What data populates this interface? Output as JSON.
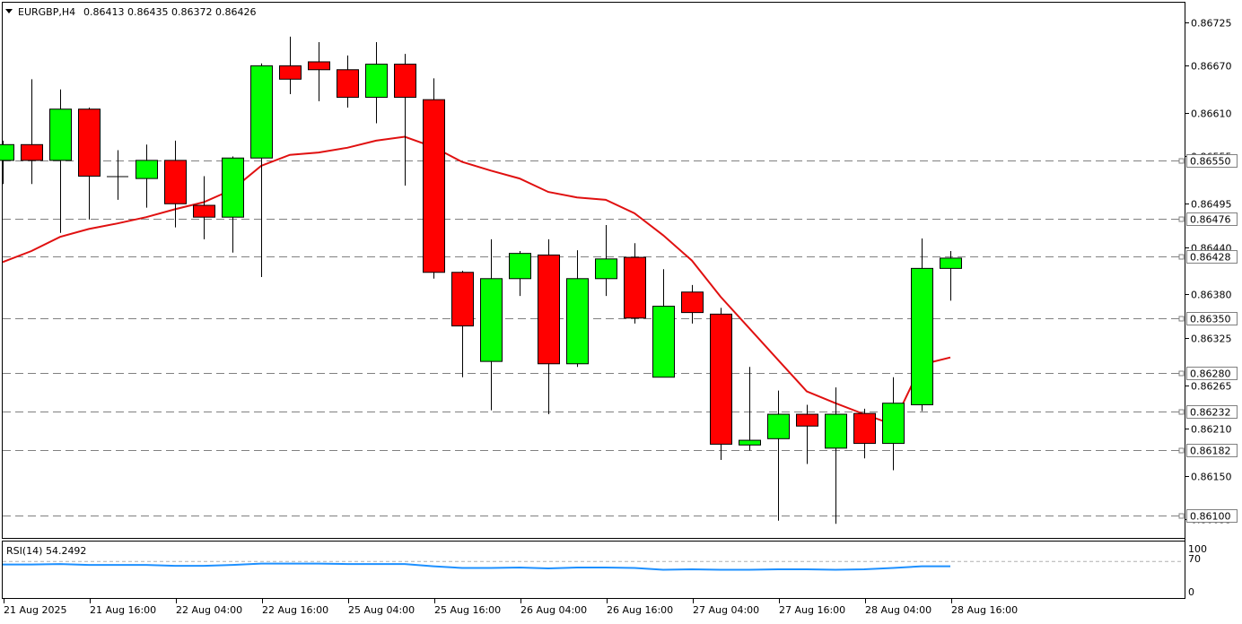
{
  "header": {
    "symbol": "EURGBP,H4",
    "ohlc": "0.86413 0.86435 0.86372 0.86426",
    "dropdown_icon": "triangle-down-icon"
  },
  "rsi_panel": {
    "label": "RSI(14) 54.2492",
    "ticks": [
      "100",
      "70",
      "0"
    ],
    "color": "#1e90ff"
  },
  "colors": {
    "bull": "#00ff00",
    "bear": "#ff0000",
    "ma": "#e01010",
    "grid": "#808080"
  },
  "chart_data": {
    "type": "candlestick",
    "title": "EURGBP,H4",
    "ylim": [
      0.86083,
      0.86745
    ],
    "y_ticks": [
      "0.86725",
      "0.86670",
      "0.86610",
      "0.86555",
      "0.86495",
      "0.86440",
      "0.86380",
      "0.86325",
      "0.86265",
      "0.86210",
      "0.86150",
      "0.86095"
    ],
    "price_levels": [
      "0.86550",
      "0.86476",
      "0.86428",
      "0.86350",
      "0.86280",
      "0.86232",
      "0.86182",
      "0.86100"
    ],
    "x_labels": [
      "21 Aug 2025",
      "21 Aug 16:00",
      "22 Aug 04:00",
      "22 Aug 16:00",
      "25 Aug 04:00",
      "25 Aug 16:00",
      "26 Aug 04:00",
      "26 Aug 16:00",
      "27 Aug 04:00",
      "27 Aug 16:00",
      "28 Aug 04:00",
      "28 Aug 16:00"
    ],
    "candles": [
      {
        "o": 0.8655,
        "h": 0.86575,
        "l": 0.8652,
        "c": 0.8657
      },
      {
        "o": 0.8657,
        "h": 0.86653,
        "l": 0.8652,
        "c": 0.8655
      },
      {
        "o": 0.8655,
        "h": 0.8664,
        "l": 0.86458,
        "c": 0.86615
      },
      {
        "o": 0.86615,
        "h": 0.86617,
        "l": 0.86475,
        "c": 0.8653
      },
      {
        "o": 0.8653,
        "h": 0.86563,
        "l": 0.865,
        "c": 0.8653
      },
      {
        "o": 0.86527,
        "h": 0.8657,
        "l": 0.8649,
        "c": 0.8655
      },
      {
        "o": 0.8655,
        "h": 0.86575,
        "l": 0.86465,
        "c": 0.86495
      },
      {
        "o": 0.86493,
        "h": 0.8653,
        "l": 0.8645,
        "c": 0.86478
      },
      {
        "o": 0.86478,
        "h": 0.86555,
        "l": 0.86433,
        "c": 0.86553
      },
      {
        "o": 0.86553,
        "h": 0.86673,
        "l": 0.86402,
        "c": 0.8667
      },
      {
        "o": 0.8667,
        "h": 0.86707,
        "l": 0.86634,
        "c": 0.86653
      },
      {
        "o": 0.86675,
        "h": 0.867,
        "l": 0.86625,
        "c": 0.86665
      },
      {
        "o": 0.86665,
        "h": 0.86683,
        "l": 0.86617,
        "c": 0.8663
      },
      {
        "o": 0.8663,
        "h": 0.867,
        "l": 0.86597,
        "c": 0.86672
      },
      {
        "o": 0.86672,
        "h": 0.86685,
        "l": 0.86518,
        "c": 0.8663
      },
      {
        "o": 0.86627,
        "h": 0.86654,
        "l": 0.864,
        "c": 0.86408
      },
      {
        "o": 0.86408,
        "h": 0.8641,
        "l": 0.86275,
        "c": 0.8634
      },
      {
        "o": 0.86295,
        "h": 0.8645,
        "l": 0.86233,
        "c": 0.864
      },
      {
        "o": 0.864,
        "h": 0.86435,
        "l": 0.86378,
        "c": 0.86432
      },
      {
        "o": 0.8643,
        "h": 0.8645,
        "l": 0.86228,
        "c": 0.86292
      },
      {
        "o": 0.86292,
        "h": 0.86436,
        "l": 0.86288,
        "c": 0.864
      },
      {
        "o": 0.864,
        "h": 0.86468,
        "l": 0.86378,
        "c": 0.86425
      },
      {
        "o": 0.86427,
        "h": 0.86445,
        "l": 0.86343,
        "c": 0.8635
      },
      {
        "o": 0.86275,
        "h": 0.86412,
        "l": 0.86275,
        "c": 0.86365
      },
      {
        "o": 0.86383,
        "h": 0.86392,
        "l": 0.86343,
        "c": 0.86357
      },
      {
        "o": 0.86355,
        "h": 0.86363,
        "l": 0.8617,
        "c": 0.8619
      },
      {
        "o": 0.86189,
        "h": 0.86288,
        "l": 0.86182,
        "c": 0.86195
      },
      {
        "o": 0.86197,
        "h": 0.86258,
        "l": 0.86093,
        "c": 0.86228
      },
      {
        "o": 0.86228,
        "h": 0.8624,
        "l": 0.86165,
        "c": 0.86213
      },
      {
        "o": 0.86185,
        "h": 0.86262,
        "l": 0.86089,
        "c": 0.86228
      },
      {
        "o": 0.86229,
        "h": 0.86235,
        "l": 0.86172,
        "c": 0.86191
      },
      {
        "o": 0.86191,
        "h": 0.86275,
        "l": 0.86157,
        "c": 0.86242
      },
      {
        "o": 0.8624,
        "h": 0.86451,
        "l": 0.86232,
        "c": 0.86413
      },
      {
        "o": 0.86413,
        "h": 0.86435,
        "l": 0.86372,
        "c": 0.86426
      }
    ],
    "ma": [
      0.86421,
      0.86435,
      0.86453,
      0.86463,
      0.8647,
      0.86478,
      0.86488,
      0.86497,
      0.86513,
      0.86543,
      0.86557,
      0.8656,
      0.86566,
      0.86575,
      0.8658,
      0.86567,
      0.86548,
      0.86537,
      0.86527,
      0.8651,
      0.86503,
      0.865,
      0.86483,
      0.86455,
      0.86423,
      0.86377,
      0.86337,
      0.86297,
      0.86257,
      0.86242,
      0.86228,
      0.86215,
      0.86291,
      0.863
    ],
    "rsi": {
      "range": [
        0,
        100
      ],
      "levels": [
        30,
        70
      ],
      "values": [
        62,
        62,
        63,
        61,
        61,
        61,
        59,
        59,
        61,
        64,
        64,
        64,
        63,
        63,
        63,
        58,
        54,
        54,
        55,
        53,
        55,
        55,
        54,
        50,
        51,
        50,
        50,
        51,
        51,
        50,
        51,
        54,
        58,
        58
      ]
    }
  }
}
